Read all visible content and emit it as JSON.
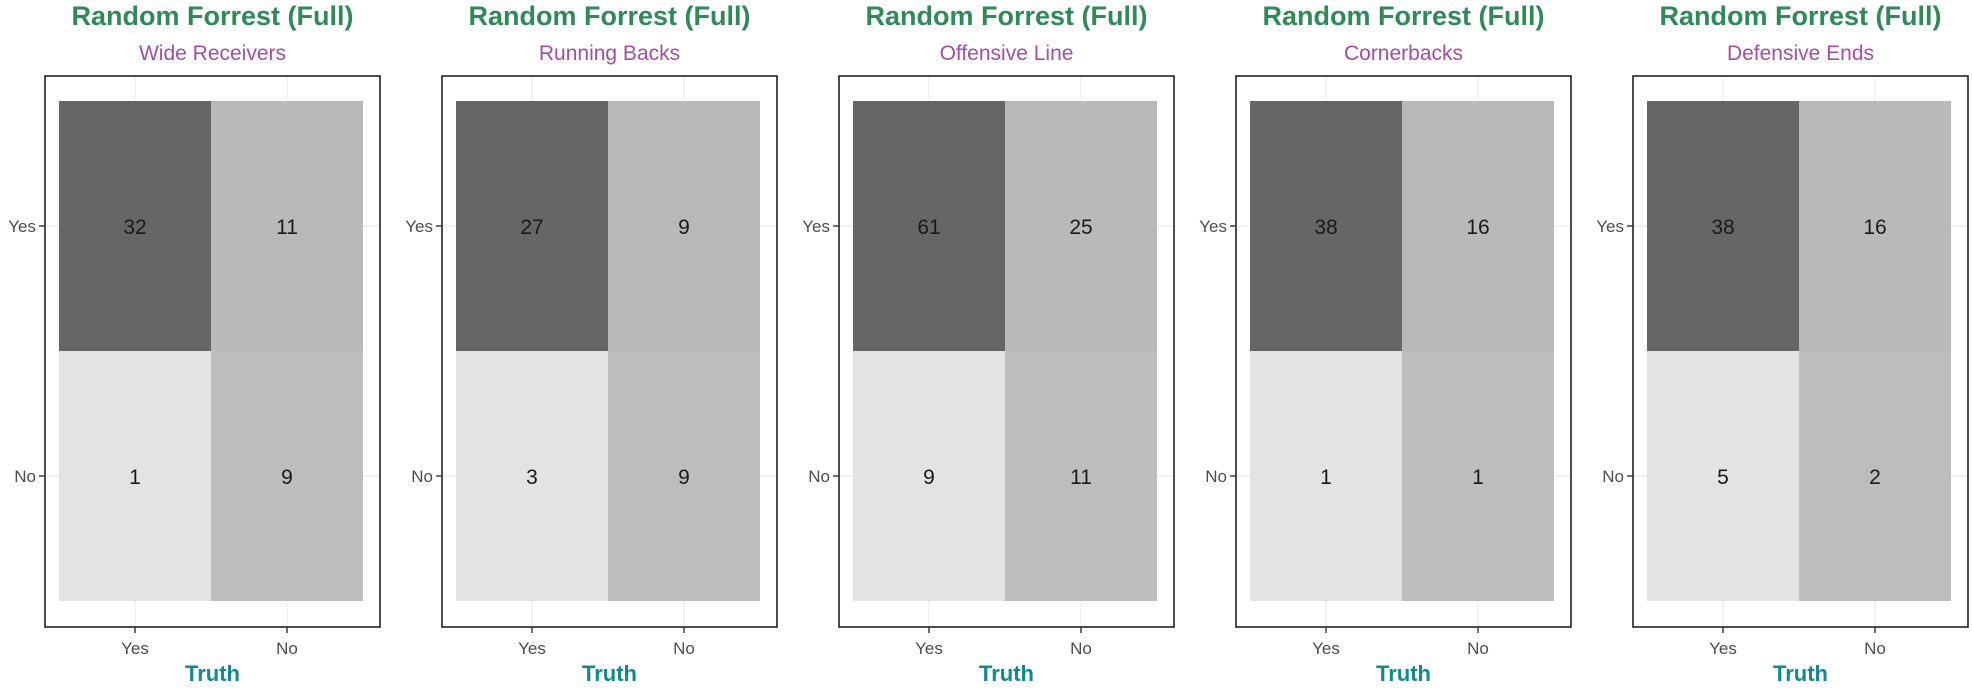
{
  "chart_data": [
    {
      "type": "heatmap",
      "title": "Random Forrest (Full)",
      "subtitle": "Wide Receivers",
      "xlabel": "Truth",
      "ylabel": "",
      "x_categories": [
        "Yes",
        "No"
      ],
      "y_categories": [
        "Yes",
        "No"
      ],
      "values": [
        [
          32,
          11
        ],
        [
          1,
          9
        ]
      ]
    },
    {
      "type": "heatmap",
      "title": "Random Forrest (Full)",
      "subtitle": "Running Backs",
      "xlabel": "Truth",
      "ylabel": "",
      "x_categories": [
        "Yes",
        "No"
      ],
      "y_categories": [
        "Yes",
        "No"
      ],
      "values": [
        [
          27,
          9
        ],
        [
          3,
          9
        ]
      ]
    },
    {
      "type": "heatmap",
      "title": "Random Forrest (Full)",
      "subtitle": "Offensive Line",
      "xlabel": "Truth",
      "ylabel": "",
      "x_categories": [
        "Yes",
        "No"
      ],
      "y_categories": [
        "Yes",
        "No"
      ],
      "values": [
        [
          61,
          25
        ],
        [
          9,
          11
        ]
      ]
    },
    {
      "type": "heatmap",
      "title": "Random Forrest (Full)",
      "subtitle": "Cornerbacks",
      "xlabel": "Truth",
      "ylabel": "",
      "x_categories": [
        "Yes",
        "No"
      ],
      "y_categories": [
        "Yes",
        "No"
      ],
      "values": [
        [
          38,
          16
        ],
        [
          1,
          1
        ]
      ]
    },
    {
      "type": "heatmap",
      "title": "Random Forrest (Full)",
      "subtitle": "Defensive Ends",
      "xlabel": "Truth",
      "ylabel": "",
      "x_categories": [
        "Yes",
        "No"
      ],
      "y_categories": [
        "Yes",
        "No"
      ],
      "values": [
        [
          38,
          16
        ],
        [
          5,
          2
        ]
      ]
    }
  ],
  "colors": {
    "title": "#2e8b57",
    "subtitle": "#a64ca6",
    "axis_title": "#0f8b8d",
    "tick_label": "#4d4d4d",
    "cells": [
      [
        "#666666",
        "#b9b9b9"
      ],
      [
        "#e3e3e3",
        "#bdbdbd"
      ]
    ]
  }
}
